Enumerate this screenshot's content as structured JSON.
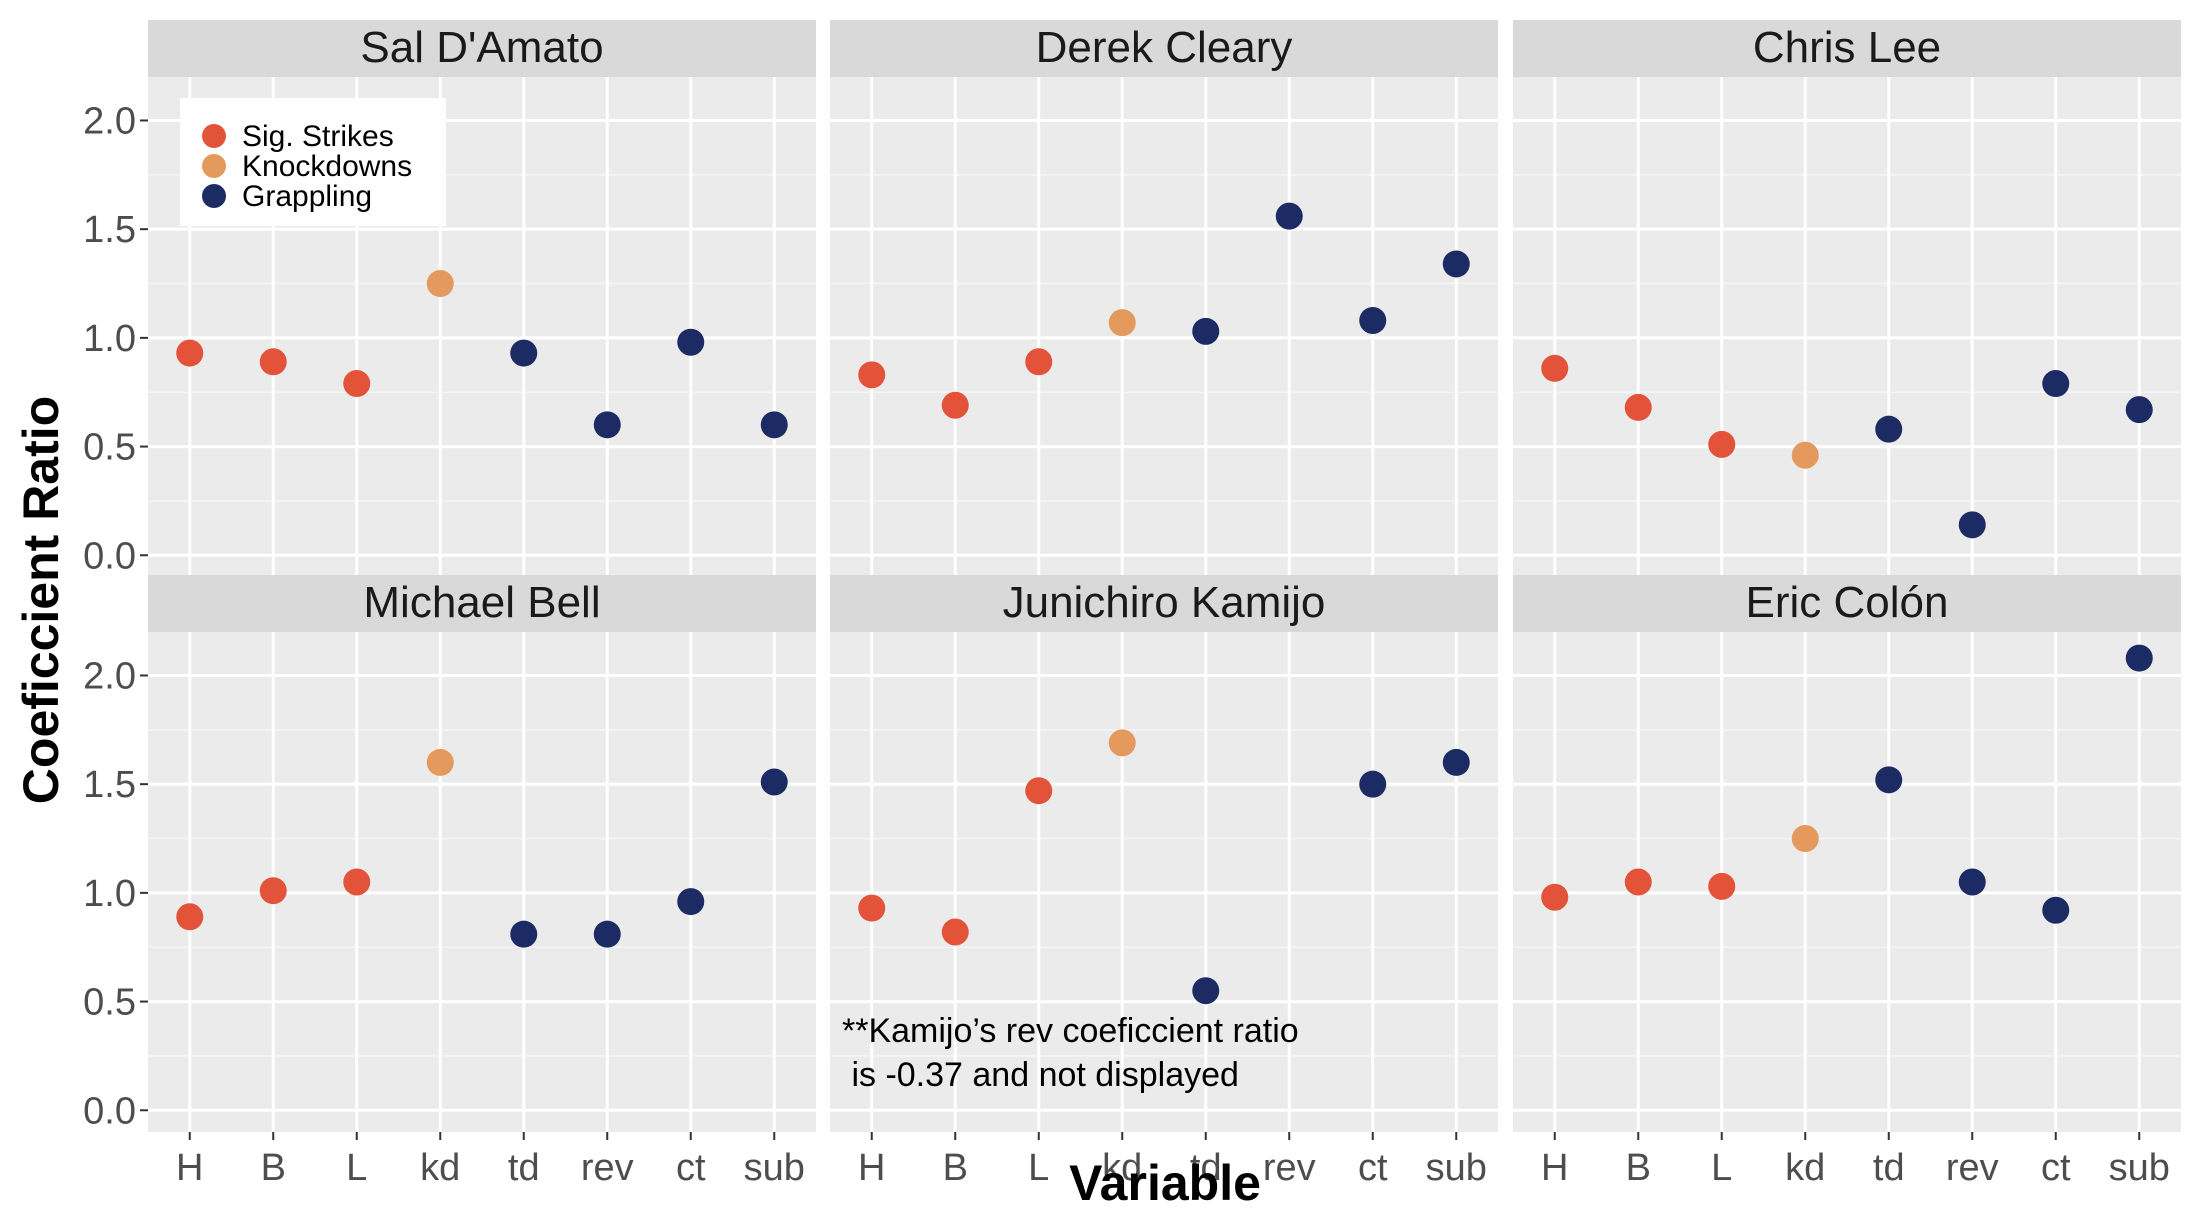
{
  "chart_data": {
    "type": "scatter",
    "title": "",
    "xlabel": "Variable",
    "ylabel": "Coeficcient Ratio",
    "categories": [
      "H",
      "B",
      "L",
      "kd",
      "td",
      "rev",
      "ct",
      "sub"
    ],
    "y_ticks": [
      "0.0",
      "0.5",
      "1.0",
      "1.5",
      "2.0"
    ],
    "ylim": [
      -0.1,
      2.2
    ],
    "grid": true,
    "legend_position": "top-left",
    "legend": [
      {
        "name": "Sig. Strikes",
        "color": "#e2533a"
      },
      {
        "name": "Knockdowns",
        "color": "#e49a5c"
      },
      {
        "name": "Grappling",
        "color": "#1c2b63"
      }
    ],
    "category_groups": [
      "Sig. Strikes",
      "Sig. Strikes",
      "Sig. Strikes",
      "Knockdowns",
      "Grappling",
      "Grappling",
      "Grappling",
      "Grappling"
    ],
    "panels": [
      {
        "name": "Sal D'Amato",
        "values": [
          0.93,
          0.89,
          0.79,
          1.25,
          0.93,
          0.6,
          0.98,
          0.6
        ]
      },
      {
        "name": "Derek Cleary",
        "values": [
          0.83,
          0.69,
          0.89,
          1.07,
          1.03,
          1.56,
          1.08,
          1.34
        ]
      },
      {
        "name": "Chris Lee",
        "values": [
          0.86,
          0.68,
          0.51,
          0.46,
          0.58,
          0.14,
          0.79,
          0.67
        ]
      },
      {
        "name": "Michael Bell",
        "values": [
          0.89,
          1.01,
          1.05,
          1.6,
          0.81,
          0.81,
          0.96,
          1.51
        ]
      },
      {
        "name": "Junichiro Kamijo",
        "values": [
          0.93,
          0.82,
          1.47,
          1.69,
          0.55,
          null,
          1.5,
          1.6
        ]
      },
      {
        "name": "Eric Colón",
        "values": [
          0.98,
          1.05,
          1.03,
          1.25,
          1.52,
          1.05,
          0.92,
          2.08
        ]
      }
    ],
    "annotation": {
      "panel": "Junichiro Kamijo",
      "lines": [
        "**Kamijo’s rev coeficcient ratio",
        " is -0.37 and not displayed"
      ]
    }
  }
}
